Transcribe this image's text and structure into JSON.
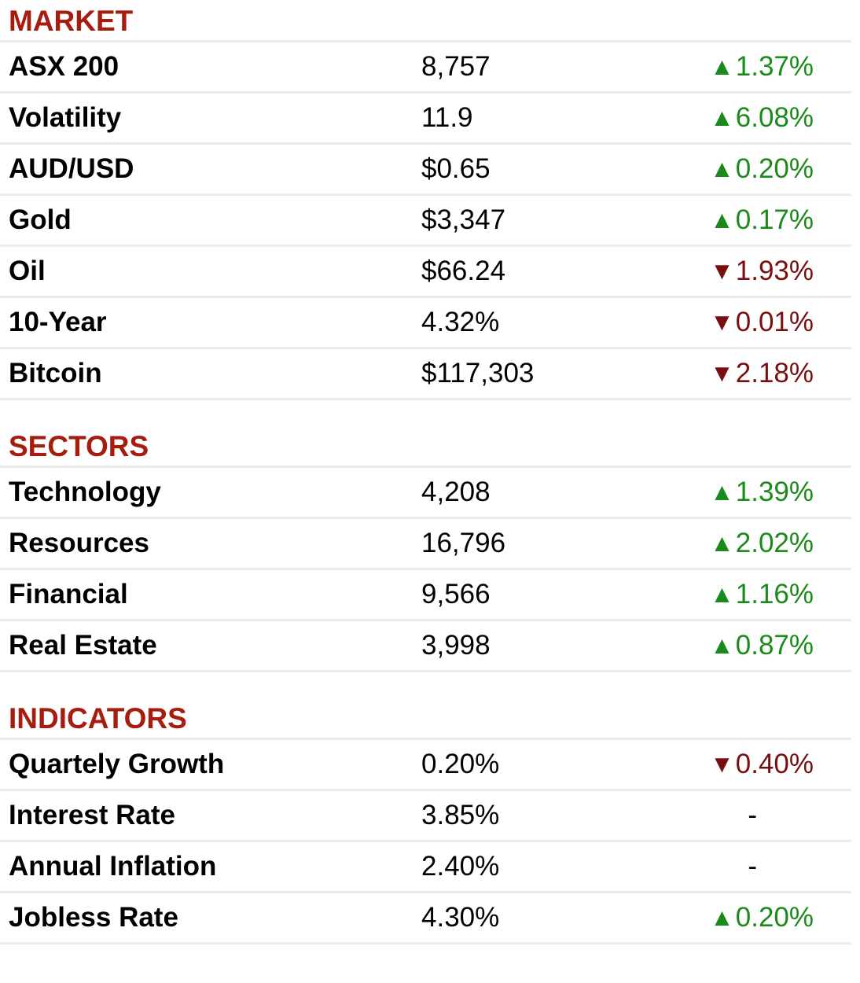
{
  "sections": [
    {
      "title": "MARKET",
      "rows": [
        {
          "name": "ASX 200",
          "value": "8,757",
          "direction": "up",
          "change": "1.37%"
        },
        {
          "name": "Volatility",
          "value": "11.9",
          "direction": "up",
          "change": "6.08%"
        },
        {
          "name": "AUD/USD",
          "value": "$0.65",
          "direction": "up",
          "change": "0.20%"
        },
        {
          "name": "Gold",
          "value": "$3,347",
          "direction": "up",
          "change": "0.17%"
        },
        {
          "name": "Oil",
          "value": "$66.24",
          "direction": "down",
          "change": "1.93%"
        },
        {
          "name": "10-Year",
          "value": "4.32%",
          "direction": "down",
          "change": "0.01%"
        },
        {
          "name": "Bitcoin",
          "value": "$117,303",
          "direction": "down",
          "change": "2.18%"
        }
      ]
    },
    {
      "title": "SECTORS",
      "rows": [
        {
          "name": "Technology",
          "value": "4,208",
          "direction": "up",
          "change": "1.39%"
        },
        {
          "name": "Resources",
          "value": "16,796",
          "direction": "up",
          "change": "2.02%"
        },
        {
          "name": "Financial",
          "value": "9,566",
          "direction": "up",
          "change": "1.16%"
        },
        {
          "name": "Real Estate",
          "value": "3,998",
          "direction": "up",
          "change": "0.87%"
        }
      ]
    },
    {
      "title": "INDICATORS",
      "rows": [
        {
          "name": "Quartely Growth",
          "value": "0.20%",
          "direction": "down",
          "change": "0.40%"
        },
        {
          "name": "Interest Rate",
          "value": "3.85%",
          "direction": "flat",
          "change": "-"
        },
        {
          "name": "Annual Inflation",
          "value": "2.40%",
          "direction": "flat",
          "change": "-"
        },
        {
          "name": "Jobless Rate",
          "value": "4.30%",
          "direction": "up",
          "change": "0.20%"
        }
      ]
    }
  ],
  "icons": {
    "up": "triangle-up-icon",
    "down": "triangle-down-icon"
  },
  "colors": {
    "section_title": "#a61d10",
    "up": "#1a8a1a",
    "down": "#7a0e0e",
    "divider": "#ececec"
  }
}
